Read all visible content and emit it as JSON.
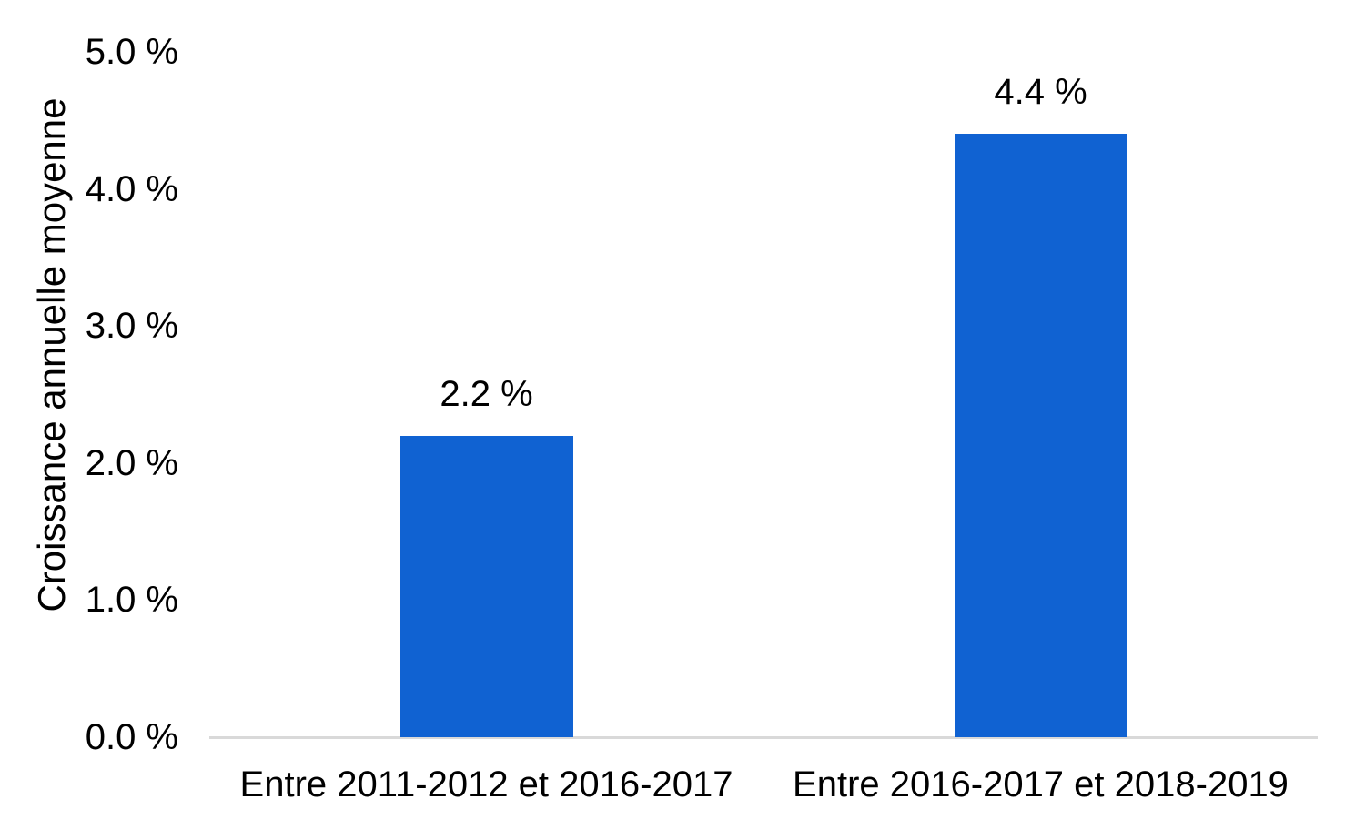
{
  "chart_data": {
    "type": "bar",
    "title": "",
    "xlabel": "",
    "ylabel": "Croissance annuelle moyenne",
    "categories": [
      "Entre 2011-2012 et 2016-2017",
      "Entre 2016-2017 et 2018-2019"
    ],
    "values": [
      2.2,
      4.4
    ],
    "value_labels": [
      "2.2 %",
      "4.4 %"
    ],
    "ylim": [
      0,
      5
    ],
    "yticks": [
      0,
      1,
      2,
      3,
      4,
      5
    ],
    "ytick_labels": [
      "0.0 %",
      "1.0 %",
      "2.0 %",
      "3.0 %",
      "4.0 %",
      "5.0 %"
    ],
    "grid": false,
    "legend": "none",
    "bar_color": "#1062d2",
    "axis_line_color": "#d9d9d9",
    "text_color": "#000000"
  }
}
